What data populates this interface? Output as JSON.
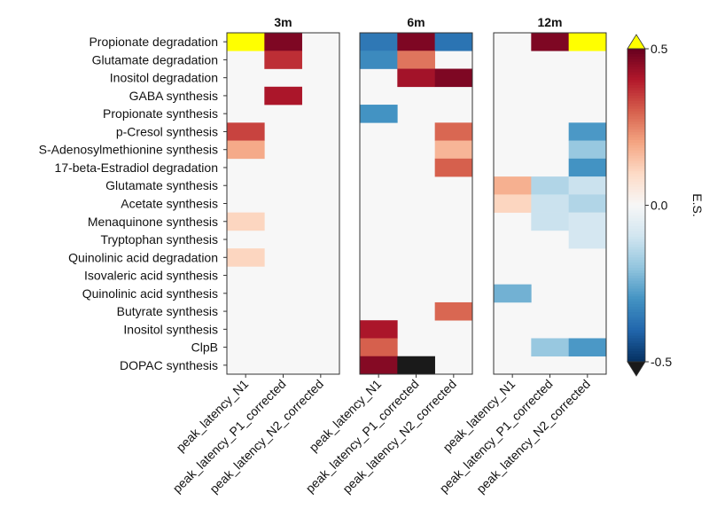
{
  "chart_data": {
    "type": "heatmap",
    "rows": [
      "Propionate degradation",
      "Glutamate degradation",
      "Inositol degradation",
      "GABA synthesis",
      "Propionate synthesis",
      "p-Cresol synthesis",
      "S-Adenosylmethionine synthesis",
      "17-beta-Estradiol degradation",
      "Glutamate synthesis",
      "Acetate synthesis",
      "Menaquinone synthesis",
      "Tryptophan synthesis",
      "Quinolinic acid degradation",
      "Isovaleric acid synthesis",
      "Quinolinic acid synthesis",
      "Butyrate synthesis",
      "Inositol synthesis",
      "ClpB",
      "DOPAC synthesis"
    ],
    "columns": [
      "peak_latency_N1",
      "peak_latency_P1_corrected",
      "peak_latency_N2_corrected"
    ],
    "panels": [
      {
        "title": "3m",
        "values": [
          [
            0.65,
            0.47,
            0.0
          ],
          [
            0.0,
            0.37,
            0.0
          ],
          [
            0.0,
            0.0,
            0.0
          ],
          [
            0.0,
            0.41,
            0.0
          ],
          [
            0.0,
            0.0,
            0.0
          ],
          [
            0.34,
            0.0,
            0.0
          ],
          [
            0.19,
            0.0,
            0.0
          ],
          [
            0.0,
            0.0,
            0.0
          ],
          [
            0.0,
            0.0,
            0.0
          ],
          [
            0.0,
            0.0,
            0.0
          ],
          [
            0.11,
            0.0,
            0.0
          ],
          [
            0.0,
            0.0,
            0.0
          ],
          [
            0.11,
            0.0,
            0.0
          ],
          [
            0.0,
            0.0,
            0.0
          ],
          [
            0.0,
            0.0,
            0.0
          ],
          [
            0.0,
            0.0,
            0.0
          ],
          [
            0.0,
            0.0,
            0.0
          ],
          [
            0.0,
            0.0,
            0.0
          ],
          [
            0.0,
            0.0,
            0.0
          ]
        ]
      },
      {
        "title": "6m",
        "values": [
          [
            -0.36,
            0.47,
            -0.37
          ],
          [
            -0.32,
            0.27,
            0.0
          ],
          [
            0.0,
            0.42,
            0.47
          ],
          [
            0.0,
            0.0,
            0.0
          ],
          [
            -0.3,
            0.0,
            0.0
          ],
          [
            0.0,
            0.0,
            0.29
          ],
          [
            0.0,
            0.0,
            0.17
          ],
          [
            0.0,
            0.0,
            0.3
          ],
          [
            0.0,
            0.0,
            0.0
          ],
          [
            0.0,
            0.0,
            0.0
          ],
          [
            0.0,
            0.0,
            0.0
          ],
          [
            0.0,
            0.0,
            0.0
          ],
          [
            0.0,
            0.0,
            0.0
          ],
          [
            0.0,
            0.0,
            0.0
          ],
          [
            0.0,
            0.0,
            0.0
          ],
          [
            0.0,
            0.0,
            0.29
          ],
          [
            0.41,
            0.0,
            0.0
          ],
          [
            0.3,
            0.0,
            0.0
          ],
          [
            0.46,
            -0.62,
            0.0
          ]
        ]
      },
      {
        "title": "12m",
        "values": [
          [
            0.0,
            0.47,
            0.65
          ],
          [
            0.0,
            0.0,
            0.0
          ],
          [
            0.0,
            0.0,
            0.0
          ],
          [
            0.0,
            0.0,
            0.0
          ],
          [
            0.0,
            0.0,
            0.0
          ],
          [
            0.0,
            0.0,
            -0.29
          ],
          [
            0.0,
            0.0,
            -0.19
          ],
          [
            0.0,
            0.0,
            -0.3
          ],
          [
            0.18,
            -0.15,
            -0.11
          ],
          [
            0.11,
            -0.11,
            -0.15
          ],
          [
            0.0,
            -0.11,
            -0.09
          ],
          [
            0.0,
            0.0,
            -0.09
          ],
          [
            0.0,
            0.0,
            0.0
          ],
          [
            0.0,
            0.0,
            0.0
          ],
          [
            -0.24,
            0.0,
            0.0
          ],
          [
            0.0,
            0.0,
            0.0
          ],
          [
            0.0,
            0.0,
            0.0
          ],
          [
            0.0,
            -0.19,
            -0.29
          ],
          [
            0.0,
            0.0,
            0.0
          ]
        ]
      }
    ],
    "colorbar": {
      "label": "E.S.",
      "ticks": [
        "-0.5",
        "0.0",
        "0.5"
      ],
      "range": [
        -0.5,
        0.5
      ],
      "over_color": "#ffff00",
      "under_color": "#1a1a1a",
      "colormap": "RdBu_r"
    }
  }
}
